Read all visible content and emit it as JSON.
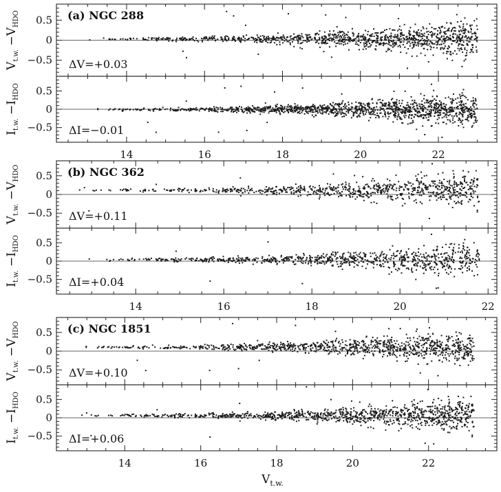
{
  "figure": {
    "xlabel": "V",
    "xlabel_sub": "t.w.",
    "ylabel_v": {
      "main": "V",
      "sub1": "t.w.",
      "mid": " −V",
      "sub2": "HDO"
    },
    "ylabel_i": {
      "main": "I",
      "sub1": "t.w.",
      "mid": " −I",
      "sub2": "HDO"
    }
  },
  "chart_data": [
    {
      "type": "scatter",
      "group": "a",
      "panel_label": "(a)",
      "cluster": "NGC 288",
      "quantity": "V",
      "offset_label": "ΔV=+0.03",
      "offset": 0.03,
      "xlim": [
        12.2,
        23.5
      ],
      "ylim": [
        -0.9,
        0.9
      ],
      "yticks": [
        0.5,
        0,
        -0.5
      ],
      "ytick_labels": [
        "0.5",
        "0",
        "−0.5"
      ],
      "x_data_start": 12.8,
      "x_data_end": 23.0,
      "point_count": 1100
    },
    {
      "type": "scatter",
      "group": "a",
      "quantity": "I",
      "offset_label": "ΔI=−0.01",
      "offset": -0.01,
      "xlim": [
        12.2,
        23.5
      ],
      "ylim": [
        -0.9,
        0.9
      ],
      "yticks": [
        0.5,
        0,
        -0.5
      ],
      "ytick_labels": [
        "0.5",
        "0",
        "−0.5"
      ],
      "xticks": [
        14,
        16,
        18,
        20,
        22
      ],
      "xtick_labels": [
        "14",
        "16",
        "18",
        "20",
        "22"
      ],
      "x_data_start": 12.8,
      "x_data_end": 23.0,
      "point_count": 1300
    },
    {
      "type": "scatter",
      "group": "b",
      "panel_label": "(b)",
      "cluster": "NGC 362",
      "quantity": "V",
      "offset_label": "ΔV=+0.11",
      "offset": 0.11,
      "xlim": [
        12.2,
        22.2
      ],
      "ylim": [
        -0.9,
        0.9
      ],
      "yticks": [
        0.5,
        0,
        -0.5
      ],
      "ytick_labels": [
        "0.5",
        "0",
        "−0.5"
      ],
      "x_data_start": 12.4,
      "x_data_end": 21.8,
      "point_count": 800
    },
    {
      "type": "scatter",
      "group": "b",
      "quantity": "I",
      "offset_label": "ΔI=+0.04",
      "offset": 0.04,
      "xlim": [
        12.2,
        22.2
      ],
      "ylim": [
        -0.9,
        0.9
      ],
      "yticks": [
        0.5,
        0,
        -0.5
      ],
      "ytick_labels": [
        "0.5",
        "0",
        "−0.5"
      ],
      "xticks": [
        14,
        16,
        18,
        20,
        22
      ],
      "xtick_labels": [
        "14",
        "16",
        "18",
        "20",
        "22"
      ],
      "x_data_start": 12.4,
      "x_data_end": 21.8,
      "point_count": 850
    },
    {
      "type": "scatter",
      "group": "c",
      "panel_label": "(c)",
      "cluster": "NGC 1851",
      "quantity": "V",
      "offset_label": "ΔV=+0.10",
      "offset": 0.1,
      "xlim": [
        12.2,
        23.8
      ],
      "ylim": [
        -0.9,
        0.9
      ],
      "yticks": [
        0.5,
        0,
        -0.5
      ],
      "ytick_labels": [
        "0.5",
        "0",
        "−0.5"
      ],
      "x_data_start": 12.5,
      "x_data_end": 23.2,
      "point_count": 1000
    },
    {
      "type": "scatter",
      "group": "c",
      "quantity": "I",
      "offset_label": "ΔI=+0.06",
      "offset": 0.06,
      "xlim": [
        12.2,
        23.8
      ],
      "ylim": [
        -0.9,
        0.9
      ],
      "yticks": [
        0.5,
        0,
        -0.5
      ],
      "ytick_labels": [
        "0.5",
        "0",
        "−0.5"
      ],
      "xticks": [
        14,
        16,
        18,
        20,
        22
      ],
      "xtick_labels": [
        "14",
        "16",
        "18",
        "20",
        "22"
      ],
      "x_data_start": 12.5,
      "x_data_end": 23.2,
      "point_count": 1050
    }
  ]
}
